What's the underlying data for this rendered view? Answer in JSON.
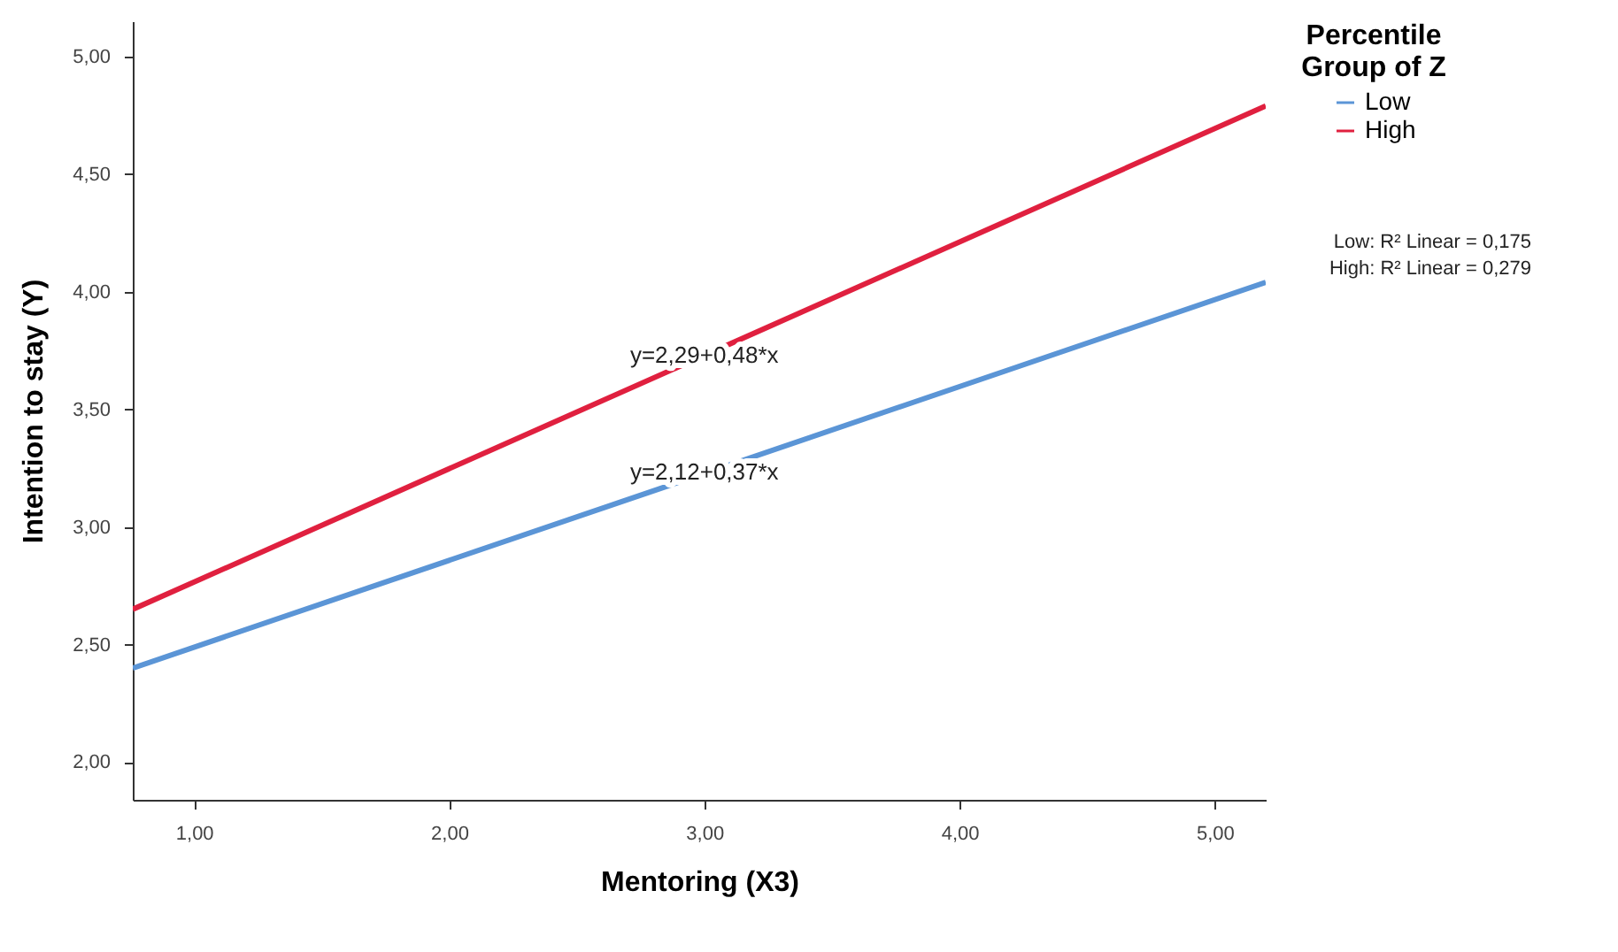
{
  "chart_data": {
    "type": "line",
    "xlabel": "Mentoring (X3)",
    "ylabel": "Intention to stay (Y)",
    "legend_title": "Percentile Group of Z",
    "legend": "top right",
    "series": [
      {
        "name": "Low",
        "color": "#5b95d6",
        "values": [
          2.4,
          4.04
        ]
      },
      {
        "name": "High",
        "color": "#e0203f",
        "values": [
          2.65,
          4.79
        ]
      }
    ],
    "x": [
      0.76,
      5.2
    ],
    "xlim": [
      0.76,
      5.2
    ],
    "ylim": [
      1.84,
      5.15
    ],
    "xticks": [
      {
        "value": 1,
        "label": "1,00"
      },
      {
        "value": 2,
        "label": "2,00"
      },
      {
        "value": 3,
        "label": "3,00"
      },
      {
        "value": 4,
        "label": "4,00"
      },
      {
        "value": 5,
        "label": "5,00"
      }
    ],
    "yticks": [
      {
        "value": 2,
        "label": "2,00"
      },
      {
        "value": 2.5,
        "label": "2,50"
      },
      {
        "value": 3,
        "label": "3,00"
      },
      {
        "value": 3.5,
        "label": "3,50"
      },
      {
        "value": 4,
        "label": "4,00"
      },
      {
        "value": 4.5,
        "label": "4,50"
      },
      {
        "value": 5,
        "label": "5,00"
      }
    ],
    "grid": false,
    "marker": "none",
    "line_style": "solid",
    "annotations": [
      {
        "text": "y=2,29+0,48*x",
        "x": 3.0,
        "y": 3.73
      },
      {
        "text": "y=2,12+0,37*x",
        "x": 3.0,
        "y": 3.23
      },
      "Low: R² Linear = 0,175",
      "High: R² Linear = 0,279"
    ]
  }
}
